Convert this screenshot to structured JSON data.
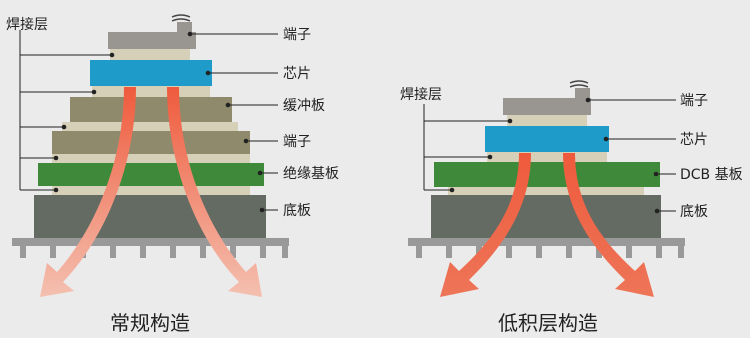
{
  "left_diagram": {
    "caption": "常规构造",
    "solder_label": "焊接层",
    "layers": [
      {
        "key": "terminal",
        "label": "端子"
      },
      {
        "key": "chip",
        "label": "芯片"
      },
      {
        "key": "buffer",
        "label": "缓冲板"
      },
      {
        "key": "terminal2",
        "label": "端子"
      },
      {
        "key": "insulator",
        "label": "绝缘基板"
      },
      {
        "key": "base",
        "label": "底板"
      }
    ]
  },
  "right_diagram": {
    "caption": "低积层构造",
    "solder_label": "焊接层",
    "layers": [
      {
        "key": "terminal",
        "label": "端子"
      },
      {
        "key": "chip",
        "label": "芯片"
      },
      {
        "key": "dcb",
        "label": "DCB 基板"
      },
      {
        "key": "base",
        "label": "底板"
      }
    ]
  },
  "colors": {
    "background": "#ebebeb",
    "terminal": "#999590",
    "chip": "#1e9bc8",
    "buffer": "#8f8a6c",
    "insulator": "#3f8a3a",
    "base": "#646b62",
    "solder": "#d6d0b8",
    "heatsink": "#999999",
    "arrow_left": "#f2b0a0",
    "arrow_right": "#ec6a50"
  }
}
